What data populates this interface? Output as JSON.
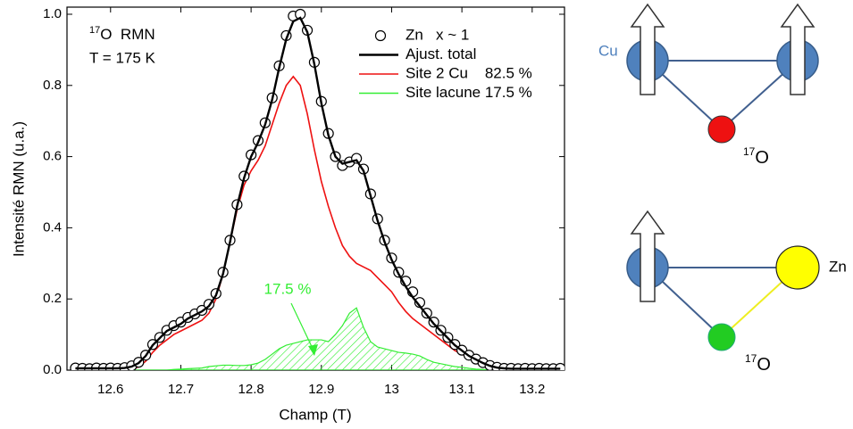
{
  "chart_data": {
    "type": "line",
    "title_sup": "17",
    "title": "O  RMN",
    "subtitle": "T = 175 K",
    "xlabel": "Champ (T)",
    "ylabel": "Intensité RMN (u.a.)",
    "xlim": [
      12.538,
      13.246
    ],
    "ylim": [
      0,
      1.02
    ],
    "xticks": [
      12.6,
      12.7,
      12.8,
      12.9,
      13.0,
      13.1,
      13.2
    ],
    "yticks": [
      {
        "value": 0,
        "label": "0.0"
      },
      0.2,
      0.4,
      0.6,
      0.8,
      {
        "value": 1,
        "label": "1.0"
      }
    ],
    "x": [
      12.55,
      12.56,
      12.57,
      12.58,
      12.59,
      12.6,
      12.61,
      12.62,
      12.63,
      12.64,
      12.65,
      12.66,
      12.67,
      12.68,
      12.69,
      12.7,
      12.71,
      12.72,
      12.73,
      12.74,
      12.75,
      12.76,
      12.77,
      12.78,
      12.79,
      12.8,
      12.81,
      12.82,
      12.83,
      12.84,
      12.85,
      12.86,
      12.87,
      12.88,
      12.89,
      12.9,
      12.91,
      12.92,
      12.93,
      12.94,
      12.95,
      12.96,
      12.97,
      12.98,
      12.99,
      13.0,
      13.01,
      13.02,
      13.03,
      13.04,
      13.05,
      13.06,
      13.07,
      13.08,
      13.09,
      13.1,
      13.11,
      13.12,
      13.13,
      13.14,
      13.15,
      13.16,
      13.17,
      13.18,
      13.19,
      13.2,
      13.21,
      13.22,
      13.23,
      13.24
    ],
    "series": [
      {
        "name": "Zn   x ~ 1",
        "kind": "scatter",
        "color": "#000000",
        "values": [
          0.006,
          0.005,
          0.004,
          0.006,
          0.005,
          0.006,
          0.005,
          0.007,
          0.012,
          0.022,
          0.042,
          0.072,
          0.092,
          0.112,
          0.125,
          0.135,
          0.148,
          0.158,
          0.168,
          0.185,
          0.215,
          0.275,
          0.365,
          0.465,
          0.545,
          0.605,
          0.645,
          0.695,
          0.765,
          0.855,
          0.94,
          0.995,
          1.0,
          0.955,
          0.865,
          0.755,
          0.665,
          0.6,
          0.575,
          0.585,
          0.595,
          0.565,
          0.495,
          0.425,
          0.365,
          0.315,
          0.275,
          0.25,
          0.22,
          0.19,
          0.16,
          0.135,
          0.112,
          0.092,
          0.072,
          0.056,
          0.042,
          0.031,
          0.021,
          0.013,
          0.008,
          0.005,
          0.005,
          0.004,
          0.005,
          0.004,
          0.005,
          0.004,
          0.004,
          0.005
        ]
      },
      {
        "name": "Ajust. total",
        "kind": "line",
        "color": "#000000",
        "values": [
          0.005,
          0.005,
          0.005,
          0.005,
          0.005,
          0.005,
          0.005,
          0.006,
          0.01,
          0.02,
          0.04,
          0.07,
          0.09,
          0.11,
          0.12,
          0.13,
          0.145,
          0.155,
          0.165,
          0.18,
          0.21,
          0.27,
          0.36,
          0.46,
          0.54,
          0.6,
          0.64,
          0.69,
          0.76,
          0.85,
          0.93,
          0.98,
          0.99,
          0.95,
          0.86,
          0.75,
          0.66,
          0.6,
          0.58,
          0.585,
          0.59,
          0.56,
          0.49,
          0.42,
          0.36,
          0.31,
          0.27,
          0.235,
          0.205,
          0.18,
          0.155,
          0.13,
          0.11,
          0.09,
          0.07,
          0.055,
          0.04,
          0.03,
          0.02,
          0.012,
          0.007,
          0.005,
          0.004,
          0.004,
          0.004,
          0.004,
          0.004,
          0.004,
          0.004,
          0.004
        ]
      },
      {
        "name": "Site 2 Cu    82.5 %",
        "kind": "line",
        "color": "#ee1111",
        "values": [
          0,
          0,
          0,
          0,
          0,
          0,
          0,
          0,
          0,
          0.01,
          0.025,
          0.05,
          0.07,
          0.085,
          0.1,
          0.11,
          0.12,
          0.13,
          0.14,
          0.16,
          0.2,
          0.27,
          0.36,
          0.45,
          0.52,
          0.56,
          0.59,
          0.63,
          0.69,
          0.75,
          0.8,
          0.825,
          0.8,
          0.72,
          0.62,
          0.53,
          0.46,
          0.4,
          0.35,
          0.32,
          0.3,
          0.29,
          0.28,
          0.26,
          0.24,
          0.22,
          0.19,
          0.165,
          0.145,
          0.13,
          0.115,
          0.1,
          0.085,
          0.07,
          0.055,
          0.045,
          0.035,
          0.027,
          0.02,
          0.012,
          0.006,
          0,
          0,
          0,
          0,
          0,
          0,
          0,
          0,
          0
        ]
      },
      {
        "name": "Site lacune 17.5 %",
        "kind": "area",
        "color": "#33ee33",
        "values": [
          0,
          0,
          0,
          0,
          0,
          0,
          0,
          0,
          0,
          0,
          0,
          0,
          0,
          0,
          0.002,
          0.003,
          0.004,
          0.005,
          0.006,
          0.01,
          0.012,
          0.014,
          0.014,
          0.013,
          0.013,
          0.015,
          0.02,
          0.03,
          0.045,
          0.06,
          0.07,
          0.075,
          0.08,
          0.085,
          0.085,
          0.085,
          0.08,
          0.1,
          0.125,
          0.16,
          0.175,
          0.12,
          0.08,
          0.065,
          0.06,
          0.055,
          0.05,
          0.048,
          0.045,
          0.04,
          0.03,
          0.022,
          0.018,
          0.014,
          0.01,
          0.008,
          0.005,
          0.003,
          0.002,
          0,
          0,
          0,
          0,
          0,
          0,
          0,
          0,
          0,
          0,
          0
        ]
      }
    ],
    "annotation": {
      "text": "17.5 %",
      "color": "#33ee33"
    }
  },
  "diagram_top": {
    "cu_label": "Cu",
    "o_sup": "17",
    "o_label": "O"
  },
  "diagram_bottom": {
    "zn_label": "Zn",
    "o_sup": "17",
    "o_label": "O"
  }
}
